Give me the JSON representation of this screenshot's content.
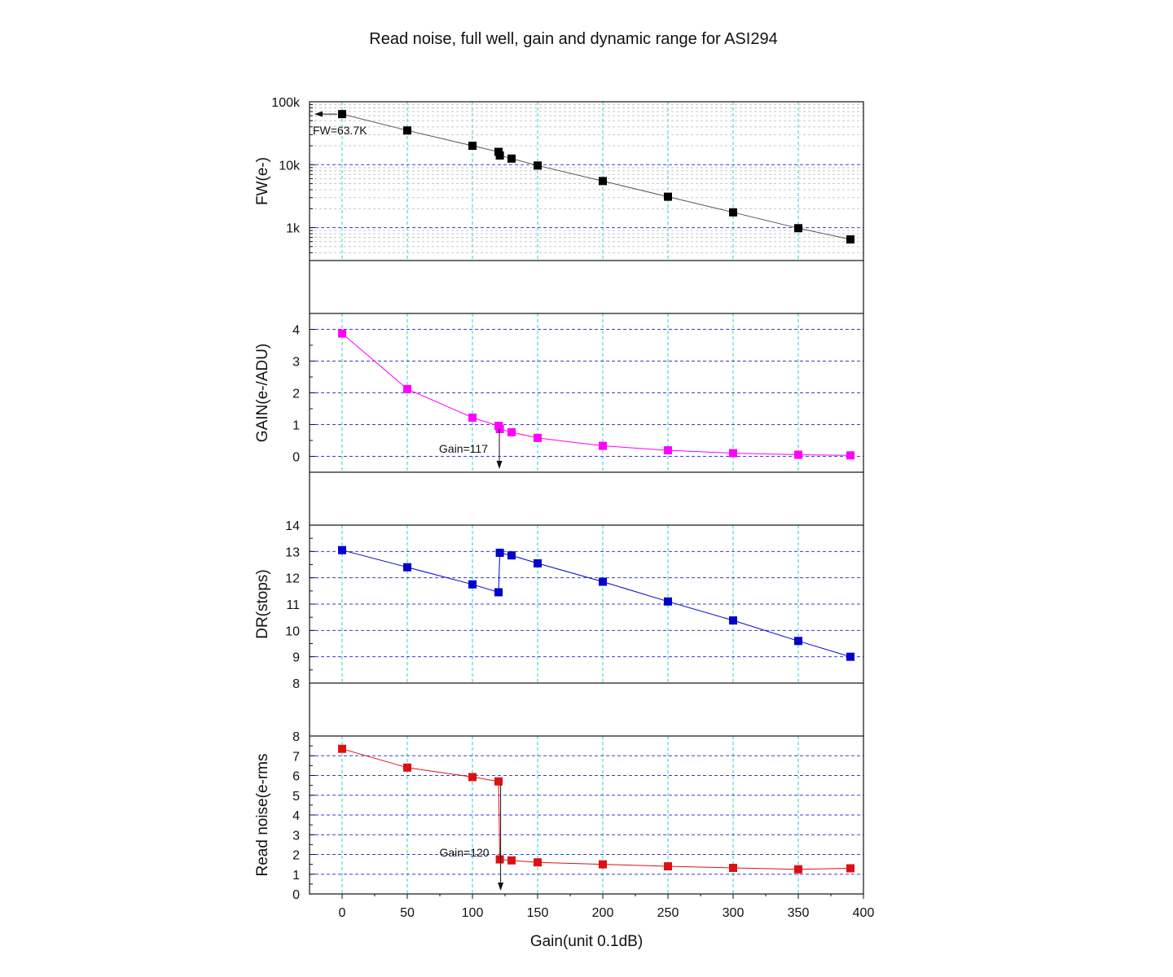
{
  "chart_data": {
    "type": "line",
    "title": "Read noise, full well, gain and dynamic range for ASI294",
    "xlabel": "Gain(unit 0.1dB)",
    "xlim": [
      -25,
      400
    ],
    "xticks": [
      0,
      50,
      100,
      150,
      200,
      250,
      300,
      350,
      400
    ],
    "grid": true,
    "panels": [
      {
        "id": "fw",
        "ylabel": "FW(e-)",
        "yscale": "log",
        "ylim": [
          300,
          100000
        ],
        "yticks": [
          1000,
          10000,
          100000
        ],
        "yticklabels": [
          "1k",
          "10k",
          "100k"
        ],
        "color": "#000000",
        "points": [
          [
            0,
            63700
          ],
          [
            50,
            35000
          ],
          [
            100,
            20000
          ],
          [
            120,
            16000
          ],
          [
            121,
            14000
          ],
          [
            130,
            12500
          ],
          [
            150,
            9700
          ],
          [
            200,
            5500
          ],
          [
            250,
            3100
          ],
          [
            300,
            1750
          ],
          [
            350,
            980
          ],
          [
            390,
            650
          ]
        ],
        "annotation": {
          "text": "FW=63.7K",
          "x": 0,
          "y": 63700,
          "arrow": "left"
        }
      },
      {
        "id": "gain",
        "ylabel": "GAIN(e-/ADU)",
        "yscale": "linear",
        "ylim": [
          -0.5,
          4.5
        ],
        "yticks": [
          0,
          1,
          2,
          3,
          4
        ],
        "color": "#ff00ff",
        "points": [
          [
            0,
            3.87
          ],
          [
            50,
            2.12
          ],
          [
            100,
            1.22
          ],
          [
            120,
            0.96
          ],
          [
            121,
            0.86
          ],
          [
            130,
            0.76
          ],
          [
            150,
            0.58
          ],
          [
            200,
            0.33
          ],
          [
            250,
            0.19
          ],
          [
            300,
            0.1
          ],
          [
            350,
            0.05
          ],
          [
            390,
            0.03
          ]
        ],
        "annotation": {
          "text": "Gain=117",
          "x": 120,
          "y": 0.96,
          "arrow": "down"
        }
      },
      {
        "id": "dr",
        "ylabel": "DR(stops)",
        "yscale": "linear",
        "ylim": [
          8,
          14
        ],
        "yticks": [
          8,
          9,
          10,
          11,
          12,
          13,
          14
        ],
        "color": "#0000cc",
        "points": [
          [
            0,
            13.05
          ],
          [
            50,
            12.4
          ],
          [
            100,
            11.75
          ],
          [
            120,
            11.45
          ],
          [
            121,
            12.95
          ],
          [
            130,
            12.85
          ],
          [
            150,
            12.55
          ],
          [
            200,
            11.85
          ],
          [
            250,
            11.1
          ],
          [
            300,
            10.38
          ],
          [
            350,
            9.6
          ],
          [
            390,
            9.0
          ]
        ]
      },
      {
        "id": "rn",
        "ylabel": "Read noise(e-rms",
        "yscale": "linear",
        "ylim": [
          0,
          8
        ],
        "yticks": [
          0,
          1,
          2,
          3,
          4,
          5,
          6,
          7,
          8
        ],
        "color": "#dd1111",
        "points": [
          [
            0,
            7.35
          ],
          [
            50,
            6.4
          ],
          [
            100,
            5.92
          ],
          [
            120,
            5.7
          ],
          [
            121,
            1.75
          ],
          [
            130,
            1.7
          ],
          [
            150,
            1.6
          ],
          [
            200,
            1.5
          ],
          [
            250,
            1.4
          ],
          [
            300,
            1.32
          ],
          [
            350,
            1.25
          ],
          [
            390,
            1.3
          ]
        ],
        "annotation": {
          "text": "Gain=120",
          "x": 121,
          "y": 5.7,
          "arrow": "down"
        }
      }
    ]
  }
}
